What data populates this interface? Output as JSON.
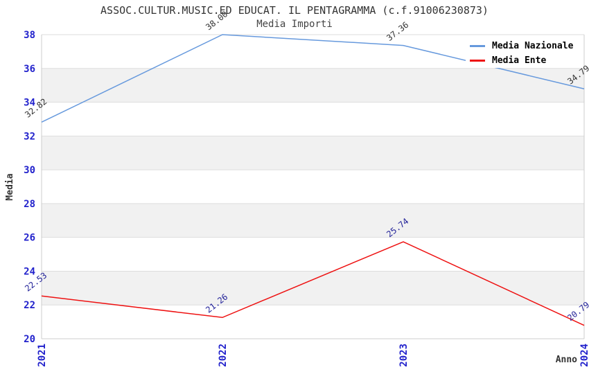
{
  "chart_data": {
    "type": "line",
    "title": "ASSOC.CULTUR.MUSIC.ED EDUCAT. IL PENTAGRAMMA (c.f.91006230873)",
    "subtitle": "Media Importi",
    "xlabel": "Anno",
    "ylabel": "Media",
    "categories": [
      "2021",
      "2022",
      "2023",
      "2024"
    ],
    "series": [
      {
        "name": "Media Nazionale",
        "color": "#6699dd",
        "label_color": "#333333",
        "values": [
          32.82,
          38.0,
          37.36,
          34.79
        ]
      },
      {
        "name": "Media Ente",
        "color": "#ee1111",
        "label_color": "#222299",
        "values": [
          22.53,
          21.26,
          25.74,
          20.79
        ]
      }
    ],
    "ylim": [
      20,
      38
    ],
    "ytick_step": 2,
    "grid": true,
    "legend_position": "top-right",
    "band_colors": [
      "#ffffff",
      "#f1f1f1"
    ],
    "gridline_color": "#dddddd",
    "frame_color": "#cccccc",
    "tick_color": "#2222cc"
  }
}
